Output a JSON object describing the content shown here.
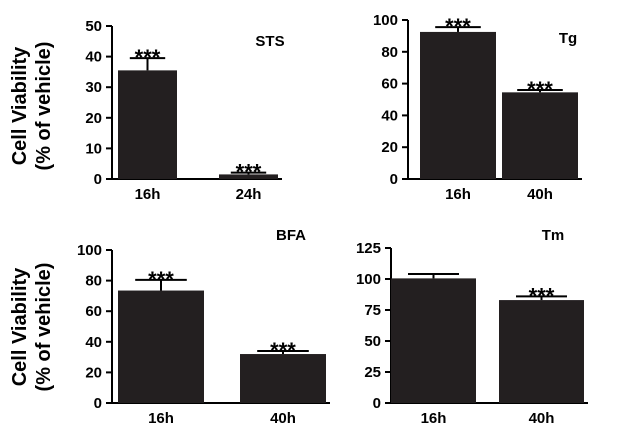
{
  "y_axis_label": {
    "line1": "Cell Viability",
    "line2": "(% of vehicle)"
  },
  "chart_data": [
    {
      "type": "bar",
      "title": "STS",
      "categories": [
        "16h",
        "24h"
      ],
      "values": [
        35.5,
        1.5
      ],
      "errors": [
        4,
        0.6
      ],
      "significance": [
        "***",
        "***"
      ],
      "ylim": [
        0,
        50
      ],
      "yticks": [
        0,
        10,
        20,
        30,
        40,
        50
      ],
      "ylabel": "Cell Viability (% of vehicle)",
      "color": "#231f20"
    },
    {
      "type": "bar",
      "title": "Tg",
      "categories": [
        "16h",
        "40h"
      ],
      "values": [
        92.5,
        54.5
      ],
      "errors": [
        3,
        1.5
      ],
      "significance": [
        "***",
        "***"
      ],
      "ylim": [
        0,
        100
      ],
      "yticks": [
        0,
        20,
        40,
        60,
        80,
        100
      ],
      "ylabel": "",
      "color": "#231f20"
    },
    {
      "type": "bar",
      "title": "BFA",
      "categories": [
        "16h",
        "40h"
      ],
      "values": [
        73.5,
        32
      ],
      "errors": [
        7,
        2
      ],
      "significance": [
        "***",
        "***"
      ],
      "ylim": [
        0,
        100
      ],
      "yticks": [
        0,
        20,
        40,
        60,
        80,
        100
      ],
      "ylabel": "Cell Viability (% of vehicle)",
      "color": "#231f20"
    },
    {
      "type": "bar",
      "title": "Tm",
      "categories": [
        "16h",
        "40h"
      ],
      "values": [
        100.5,
        83
      ],
      "errors": [
        3.5,
        3
      ],
      "significance": [
        "",
        "***"
      ],
      "ylim": [
        0,
        125
      ],
      "yticks": [
        0,
        25,
        50,
        75,
        100,
        125
      ],
      "ylabel": "",
      "color": "#231f20"
    }
  ]
}
